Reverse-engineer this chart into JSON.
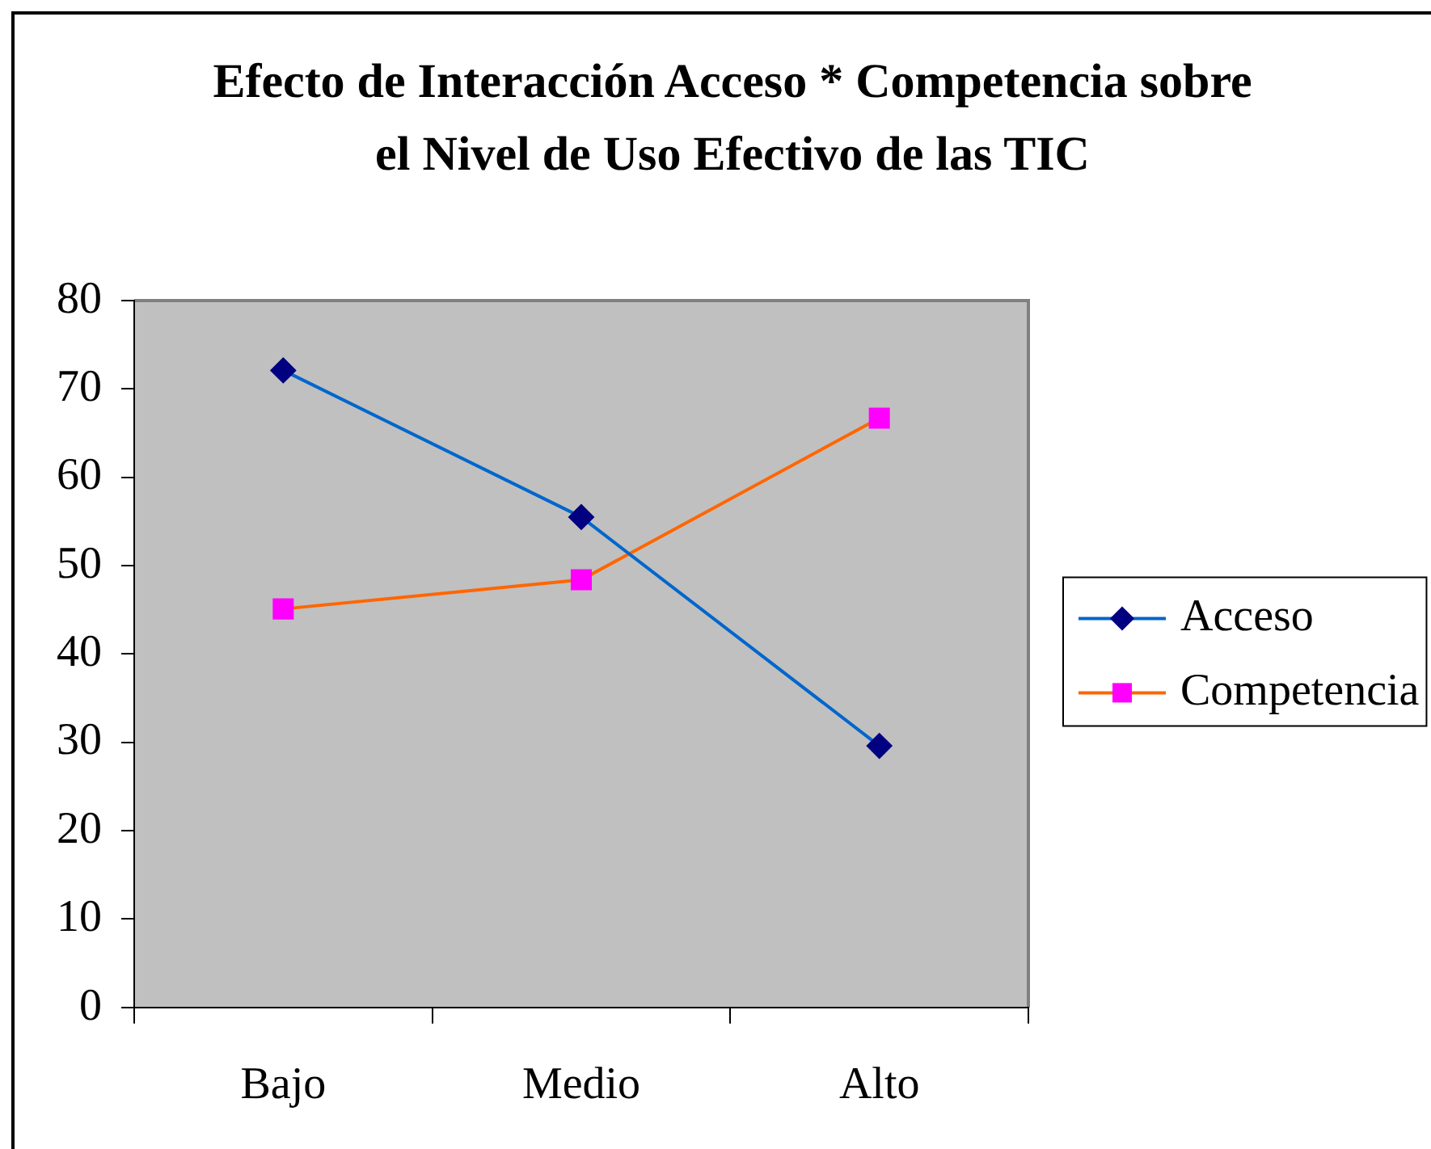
{
  "chart_data": {
    "type": "line",
    "title": "Efecto de Interacción Acceso * Competencia sobre el Nivel de Uso Efectivo de las TIC",
    "categories": [
      "Bajo",
      "Medio",
      "Alto"
    ],
    "series": [
      {
        "name": "Acceso",
        "color": "#0066cc",
        "colors": [
          "#000080",
          "#000080",
          "#000080"
        ],
        "marker": "diamond",
        "values": [
          72.1,
          55.5,
          29.6
        ]
      },
      {
        "name": "Competencia",
        "color": "#ff6600",
        "colors": [
          "#ff00ff",
          "#ff00ff",
          "#ff00ff"
        ],
        "marker": "square",
        "values": [
          45.1,
          48.4,
          66.7
        ]
      }
    ],
    "ylim": [
      0,
      80
    ],
    "yticks": [
      0,
      10,
      20,
      30,
      40,
      50,
      60,
      70,
      80
    ],
    "grid": false,
    "legend": "right"
  }
}
